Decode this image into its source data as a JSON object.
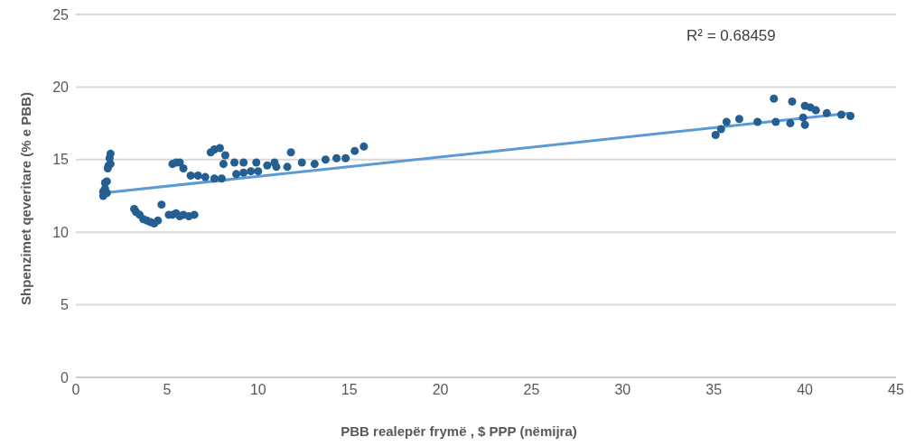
{
  "chart_data": {
    "type": "scatter",
    "xlabel": "PBB realepër frymë , $ PPP (nëmijra)",
    "ylabel": "Shpenzimet qeveritare (% e PBB)",
    "annotations": [
      "R² = 0.68459"
    ],
    "xlim": [
      0,
      45
    ],
    "xticks": [
      0,
      5,
      10,
      15,
      20,
      25,
      30,
      35,
      40,
      45
    ],
    "ylim": [
      0,
      25
    ],
    "yticks": [
      0,
      5,
      10,
      15,
      20,
      25
    ],
    "grid": "y",
    "legend": false,
    "series": [
      {
        "marker": "circle",
        "color": "#255e91",
        "x": [
          1.5,
          1.5,
          1.6,
          1.6,
          1.7,
          1.7,
          1.75,
          1.8,
          1.85,
          1.9,
          1.9,
          3.2,
          3.3,
          3.5,
          3.7,
          3.9,
          4.1,
          4.3,
          4.5,
          4.7,
          5.1,
          5.3,
          5.5,
          5.7,
          5.9,
          6.2,
          6.5,
          5.3,
          5.5,
          5.7,
          5.9,
          6.3,
          6.7,
          7.1,
          7.4,
          7.6,
          7.9,
          7.6,
          8.0,
          8.1,
          8.2,
          8.7,
          8.8,
          9.2,
          9.2,
          9.6,
          9.9,
          10.0,
          10.5,
          10.9,
          11.0,
          11.6,
          11.8,
          12.4,
          13.1,
          13.7,
          14.3,
          14.8,
          15.3,
          15.8,
          35.1,
          35.4,
          35.7,
          36.4,
          37.4,
          38.3,
          38.4,
          39.2,
          39.3,
          39.9,
          40.0,
          40.0,
          40.3,
          40.6,
          41.2,
          42.0,
          42.5
        ],
        "values": [
          12.5,
          12.8,
          13.0,
          13.4,
          12.7,
          13.5,
          14.4,
          14.6,
          15.1,
          15.4,
          14.7,
          11.6,
          11.4,
          11.2,
          10.9,
          10.8,
          10.7,
          10.6,
          10.8,
          11.9,
          11.2,
          11.2,
          11.3,
          11.1,
          11.2,
          11.1,
          11.2,
          14.7,
          14.8,
          14.8,
          14.4,
          13.9,
          13.9,
          13.8,
          15.5,
          15.7,
          15.8,
          13.7,
          13.7,
          14.7,
          15.3,
          14.8,
          14.0,
          14.8,
          14.1,
          14.2,
          14.8,
          14.2,
          14.6,
          14.8,
          14.5,
          14.5,
          15.5,
          14.8,
          14.7,
          15.0,
          15.1,
          15.1,
          15.6,
          15.9,
          16.7,
          17.1,
          17.6,
          17.8,
          17.6,
          19.2,
          17.6,
          17.5,
          19.0,
          17.9,
          18.7,
          17.4,
          18.6,
          18.4,
          18.2,
          18.1,
          18.0
        ]
      },
      {
        "type": "line",
        "marker": "none",
        "color": "#5b9bd5",
        "x": [
          1.5,
          42.5
        ],
        "values": [
          12.7,
          18.2
        ]
      }
    ]
  }
}
